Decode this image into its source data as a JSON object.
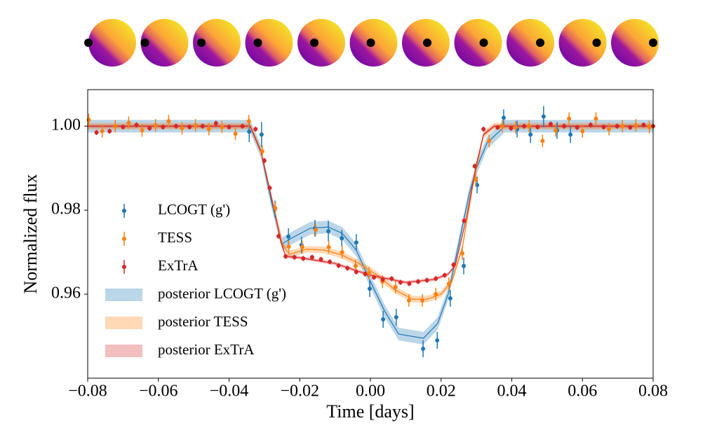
{
  "chart_data": {
    "type": "errorbar",
    "x_label": "Time [days]",
    "y_label": "Normalized flux",
    "xlim": [
      -0.08,
      0.08
    ],
    "ylim": [
      0.94,
      1.0087
    ],
    "xticks": [
      {
        "value": -0.08,
        "label": "−0.08"
      },
      {
        "value": -0.06,
        "label": "−0.06"
      },
      {
        "value": -0.04,
        "label": "−0.04"
      },
      {
        "value": -0.02,
        "label": "−0.02"
      },
      {
        "value": 0,
        "label": "0.00"
      },
      {
        "value": 0.02,
        "label": "0.02"
      },
      {
        "value": 0.04,
        "label": "0.04"
      },
      {
        "value": 0.06,
        "label": "0.06"
      },
      {
        "value": 0.08,
        "label": "0.08"
      }
    ],
    "yticks": [
      {
        "value": 0.96,
        "label": "0.96"
      },
      {
        "value": 0.98,
        "label": "0.98"
      },
      {
        "value": 1.0,
        "label": "1.00"
      }
    ],
    "legend": "center left",
    "series": [
      {
        "name": "LCOGT (g')",
        "color": "#1f77b4",
        "x": [
          -0.0343,
          -0.0308,
          -0.027,
          -0.0232,
          -0.0195,
          -0.0157,
          -0.0119,
          -0.0081,
          -0.004,
          -0.0002,
          0.0036,
          0.0073,
          0.0149,
          0.0189,
          0.0226,
          0.0264,
          0.0302,
          0.0377,
          0.0415,
          0.0453,
          0.049,
          0.0528,
          0.0566
        ],
        "values": [
          0.9987,
          0.998,
          0.9803,
          0.9737,
          0.9717,
          0.9757,
          0.975,
          0.9733,
          0.9723,
          0.9613,
          0.954,
          0.9545,
          0.947,
          0.949,
          0.959,
          0.9667,
          0.986,
          1.002,
          0.9993,
          0.998,
          1.0023,
          0.999,
          0.998
        ],
        "errors": [
          0.0025,
          0.003,
          0.002,
          0.002,
          0.002,
          0.002,
          0.0025,
          0.002,
          0.002,
          0.002,
          0.002,
          0.002,
          0.002,
          0.002,
          0.002,
          0.002,
          0.002,
          0.002,
          0.002,
          0.002,
          0.0025,
          0.002,
          0.002
        ]
      },
      {
        "name": "TESS",
        "color": "#ff7f0e",
        "x": [
          -0.0797,
          -0.0759,
          -0.0722,
          -0.0684,
          -0.0646,
          -0.0608,
          -0.0571,
          -0.0533,
          -0.0495,
          -0.0457,
          -0.042,
          -0.0382,
          -0.0344,
          -0.0306,
          -0.0269,
          -0.0231,
          -0.0193,
          -0.0155,
          -0.0118,
          -0.008,
          -0.0042,
          -0.0004,
          0.0034,
          0.0071,
          0.0109,
          0.0147,
          0.0185,
          0.0222,
          0.026,
          0.0298,
          0.0336,
          0.0373,
          0.0411,
          0.0449,
          0.0487,
          0.0524,
          0.0562,
          0.06,
          0.0638,
          0.0675,
          0.0713,
          0.0751,
          0.0789
        ],
        "values": [
          1.0015,
          0.9988,
          1.0,
          1.0008,
          0.999,
          1.0002,
          1.0012,
          0.9995,
          1.0002,
          0.9993,
          0.9998,
          0.9982,
          1.0012,
          0.994,
          0.9805,
          0.9713,
          0.9712,
          0.9753,
          0.9712,
          0.97,
          0.9667,
          0.965,
          0.963,
          0.9617,
          0.9585,
          0.9585,
          0.96,
          0.9625,
          0.9697,
          0.9873,
          0.9965,
          1.0,
          0.9997,
          1.0,
          0.9965,
          0.999,
          1.0018,
          0.9988,
          1.0018,
          0.9993,
          1.0,
          1.0002,
          0.9998
        ],
        "errors": 0.0015
      },
      {
        "name": "ExTrA",
        "color": "#d62728",
        "x": [
          -0.0775,
          -0.0738,
          -0.07,
          -0.0662,
          -0.0625,
          -0.0587,
          -0.055,
          -0.0512,
          -0.0475,
          -0.0437,
          -0.04,
          -0.0362,
          -0.0325,
          -0.03,
          -0.0285,
          -0.026,
          -0.024,
          -0.0215,
          -0.019,
          -0.0165,
          -0.014,
          -0.0115,
          -0.009,
          -0.0065,
          -0.004,
          -0.0015,
          0.001,
          0.0035,
          0.006,
          0.0085,
          0.011,
          0.0135,
          0.016,
          0.0185,
          0.021,
          0.0235,
          0.0265,
          0.0295,
          0.032,
          0.036,
          0.0398,
          0.0435,
          0.0473,
          0.051,
          0.0548,
          0.0585,
          0.0623,
          0.066,
          0.0698,
          0.0735,
          0.0773,
          0.08
        ],
        "values": [
          0.9985,
          0.9988,
          0.9998,
          1.0003,
          0.9995,
          0.9998,
          1.0,
          0.9998,
          1.0,
          1.0007,
          0.9998,
          1.0,
          0.9993,
          0.9918,
          0.9853,
          0.9738,
          0.969,
          0.9688,
          0.9685,
          0.9688,
          0.9683,
          0.9677,
          0.9668,
          0.9662,
          0.9653,
          0.9648,
          0.964,
          0.9635,
          0.9637,
          0.9628,
          0.9625,
          0.963,
          0.9633,
          0.9637,
          0.9645,
          0.967,
          0.9775,
          0.9905,
          0.9993,
          0.9997,
          0.9995,
          1.0,
          0.9998,
          1.0005,
          1.0,
          0.9997,
          1.0003,
          0.9998,
          1.0,
          0.9997,
          1.0003,
          1.0
        ],
        "errors": 0.0006
      }
    ],
    "models": [
      {
        "name": "posterior LCOGT (g')",
        "color": "#1f77b4",
        "band": 0.0015,
        "x": [
          -0.08,
          -0.034,
          -0.031,
          -0.028,
          -0.025,
          -0.022,
          -0.017,
          -0.012,
          -0.008,
          -0.004,
          0,
          0.004,
          0.008,
          0.015,
          0.019,
          0.022,
          0.025,
          0.028,
          0.03,
          0.033,
          0.038,
          0.08
        ],
        "values": [
          1,
          1,
          0.994,
          0.982,
          0.972,
          0.9735,
          0.9757,
          0.976,
          0.9745,
          0.9705,
          0.963,
          0.956,
          0.9505,
          0.9495,
          0.953,
          0.96,
          0.972,
          0.984,
          0.99,
          0.996,
          1,
          1
        ]
      },
      {
        "name": "posterior TESS",
        "color": "#ff7f0e",
        "band": 0.0008,
        "x": [
          -0.08,
          -0.034,
          -0.031,
          -0.028,
          -0.025,
          -0.023,
          -0.018,
          -0.013,
          -0.008,
          -0.003,
          0.002,
          0.007,
          0.012,
          0.016,
          0.02,
          0.023,
          0.026,
          0.029,
          0.032,
          0.035,
          0.08
        ],
        "values": [
          1,
          1,
          0.994,
          0.983,
          0.972,
          0.9695,
          0.9707,
          0.9705,
          0.9693,
          0.9672,
          0.9645,
          0.961,
          0.9588,
          0.9588,
          0.96,
          0.963,
          0.971,
          0.986,
          0.998,
          1,
          1
        ]
      },
      {
        "name": "posterior ExTrA",
        "color": "#d62728",
        "band": 0.0004,
        "x": [
          -0.08,
          -0.034,
          -0.031,
          -0.028,
          -0.0255,
          -0.024,
          -0.02,
          -0.01,
          0,
          0.01,
          0.018,
          0.022,
          0.024,
          0.027,
          0.03,
          0.032,
          0.035,
          0.08
        ],
        "values": [
          1,
          1,
          0.994,
          0.983,
          0.973,
          0.969,
          0.9687,
          0.9673,
          0.9645,
          0.9628,
          0.9635,
          0.9648,
          0.9668,
          0.9775,
          0.991,
          0.998,
          1,
          1
        ]
      }
    ]
  }
}
